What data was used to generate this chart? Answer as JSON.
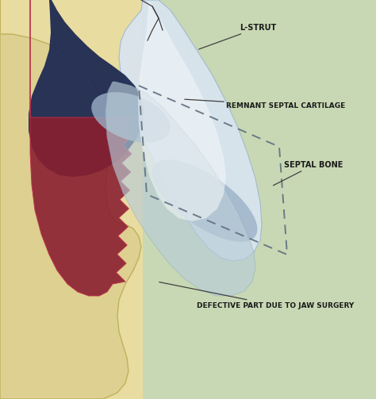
{
  "figsize": [
    4.74,
    5.03
  ],
  "dpi": 100,
  "bg_left": "#e8dca0",
  "bg_right": "#c8d8b4",
  "bg_split": 0.28,
  "colors": {
    "face_skin": "#ddd090",
    "face_edge": "#c0b060",
    "dark_blue": "#1e2a52",
    "l_strut_fill": "#d8e4f0",
    "l_strut_edge": "#a0b8cc",
    "light_blue_bone": "#9ab0c8",
    "light_blue_bone2": "#b0c4d8",
    "red_tissue": "#8a2030",
    "red_edge": "#c03050",
    "white_graft": "#e8eff5",
    "dashed_box": "#607080",
    "label_text": "#1a1a1a",
    "arrow_color": "#404040",
    "suture_color": "#404040"
  },
  "labels": {
    "l_strut": "L-STRUT",
    "remnant": "REMNANT SEPTAL CARTILAGE",
    "septal_bone": "SEPTAL BONE",
    "defective": "DEFECTIVE PART DUE TO JAW SURGERY"
  },
  "font_size": 7.0,
  "font_size_small": 6.5
}
